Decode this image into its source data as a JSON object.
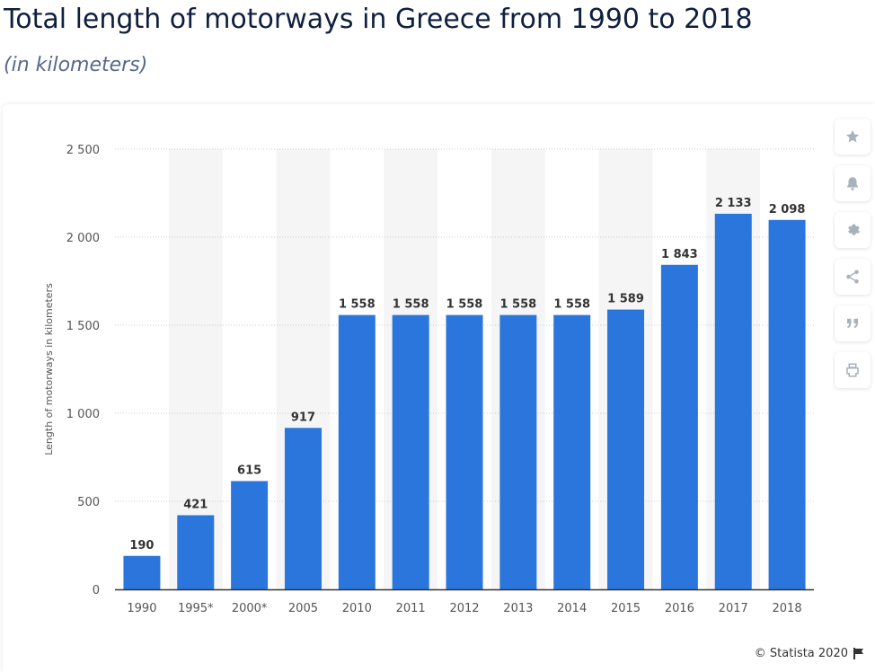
{
  "title": "Total length of motorways in Greece from 1990 to 2018",
  "subtitle": "(in kilometers)",
  "credit": "© Statista 2020",
  "colors": {
    "bar": "#2a76dd",
    "band": "#f5f5f5",
    "grid": "#cccccc",
    "axis": "#333333",
    "tick_text": "#555555",
    "label_text": "#333333",
    "icon": "#a8b2bd"
  },
  "toolbar": {
    "icons": [
      "star-icon",
      "bell-icon",
      "gear-icon",
      "share-icon",
      "quote-icon",
      "print-icon"
    ]
  },
  "chart_data": {
    "type": "bar",
    "title": "Total length of motorways in Greece from 1990 to 2018",
    "subtitle": "(in kilometers)",
    "xlabel": "",
    "ylabel": "Length of motorways in kilometers",
    "ylim": [
      0,
      2500
    ],
    "yticks": [
      0,
      500,
      1000,
      1500,
      2000,
      2500
    ],
    "ytick_labels": [
      "0",
      "500",
      "1 000",
      "1 500",
      "2 000",
      "2 500"
    ],
    "grid": true,
    "categories": [
      "1990",
      "1995*",
      "2000*",
      "2005",
      "2010",
      "2011",
      "2012",
      "2013",
      "2014",
      "2015",
      "2016",
      "2017",
      "2018"
    ],
    "values": [
      190,
      421,
      615,
      917,
      1558,
      1558,
      1558,
      1558,
      1558,
      1589,
      1843,
      2133,
      2098
    ],
    "data_labels": [
      "190",
      "421",
      "615",
      "917",
      "1 558",
      "1 558",
      "1 558",
      "1 558",
      "1 558",
      "1 589",
      "1 843",
      "2 133",
      "2 098"
    ]
  }
}
